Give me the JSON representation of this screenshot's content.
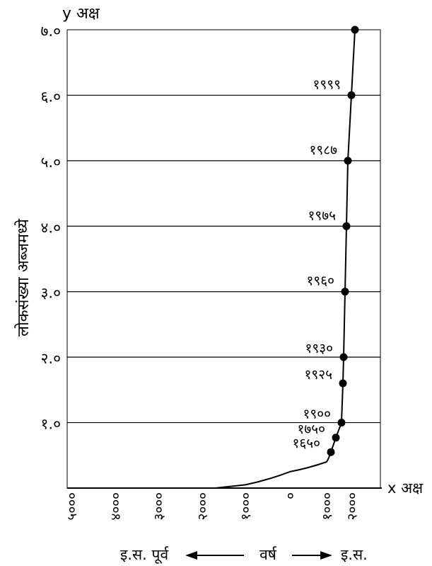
{
  "chart_data": {
    "type": "line",
    "title": "",
    "y_axis_title": "y अक्ष",
    "x_axis_title": "x अक्ष",
    "ylabel": "लोकसंख्या अब्जमध्ये",
    "xlabel": "वर्ष",
    "era_before": "इ.स. पूर्व",
    "era_after": "इ.स.",
    "y_range": [
      0,
      7.0
    ],
    "y_ticks": [
      {
        "value": 1.0,
        "label": "१.०"
      },
      {
        "value": 2.0,
        "label": "२.०"
      },
      {
        "value": 3.0,
        "label": "३.०"
      },
      {
        "value": 4.0,
        "label": "४.०"
      },
      {
        "value": 5.0,
        "label": "५.०"
      },
      {
        "value": 6.0,
        "label": "६.०"
      },
      {
        "value": 7.0,
        "label": "७.०"
      }
    ],
    "x_ticks": [
      {
        "value": -5000,
        "label": "५०००"
      },
      {
        "value": -4000,
        "label": "४०००"
      },
      {
        "value": -3000,
        "label": "३०००"
      },
      {
        "value": -2000,
        "label": "२०००"
      },
      {
        "value": -1000,
        "label": "१०००"
      },
      {
        "value": 0,
        "label": "०"
      },
      {
        "value": 1000,
        "label": "१०००"
      },
      {
        "value": 2000,
        "label": "२०००"
      }
    ],
    "grid": true,
    "series": [
      {
        "curve": [
          {
            "x": -5000,
            "y": 0
          },
          {
            "x": -1700,
            "y": 0
          },
          {
            "x": -1000,
            "y": 0.05
          },
          {
            "x": 0,
            "y": 0.25
          },
          {
            "x": 1000,
            "y": 0.4
          },
          {
            "x": 1650,
            "y": 0.55
          }
        ],
        "points": [
          {
            "year_label": "१६५०",
            "y": 0.55
          },
          {
            "year_label": "१७५०",
            "y": 0.77
          },
          {
            "year_label": "१९००",
            "y": 1.0
          },
          {
            "year_label": "१९२५",
            "y": 1.6
          },
          {
            "year_label": "१९३०",
            "y": 2.0
          },
          {
            "year_label": "१९६०",
            "y": 3.0
          },
          {
            "year_label": "१९७५",
            "y": 4.0
          },
          {
            "year_label": "१९८७",
            "y": 5.0
          },
          {
            "year_label": "१९९९",
            "y": 6.0
          },
          {
            "year_label": "",
            "y": 7.0
          }
        ]
      }
    ]
  }
}
